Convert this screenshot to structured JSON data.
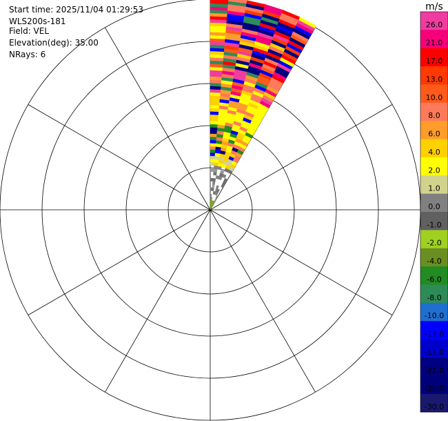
{
  "header": {
    "start_time": "Start time: 2025/11/04 01:29:53",
    "instrument": "WLS200s-181",
    "field": "Field: VEL",
    "elevation": "Elevation(deg): 35.00",
    "nrays": "NRays: 6"
  },
  "chart_data": {
    "type": "heatmap",
    "projection": "polar-ppi",
    "field": "VEL",
    "units": "m/s",
    "azimuth_range_deg": [
      0,
      30
    ],
    "n_rays": 6,
    "rings": 5,
    "spokes_deg": [
      0,
      30,
      60,
      90,
      120,
      150,
      180,
      210,
      240,
      270,
      300,
      330
    ],
    "colorbar": {
      "unit_label": "m/s",
      "ticks": [
        "26.0",
        "21.0",
        "17.0",
        "13.0",
        "10.0",
        "8.0",
        "6.0",
        "4.0",
        "2.0",
        "1.0",
        "0.0",
        "-1.0",
        "-2.0",
        "-4.0",
        "-6.0",
        "-8.0",
        "-10.0",
        "-13.0",
        "-17.0",
        "-21.0",
        "-26.0",
        "-30.0"
      ],
      "colors": [
        "#f03ca0",
        "#f5007a",
        "#ff0000",
        "#ff3a00",
        "#ff5a1a",
        "#ff7a5a",
        "#ff9c2a",
        "#ffd000",
        "#ffff00",
        "#d2d28c",
        "#808080",
        "#606060",
        "#a0d020",
        "#6b8e23",
        "#228b22",
        "#2e8b57",
        "#1e6fd0",
        "#0000ff",
        "#0000cd",
        "#000080",
        "#00007a",
        "#191970"
      ]
    }
  }
}
